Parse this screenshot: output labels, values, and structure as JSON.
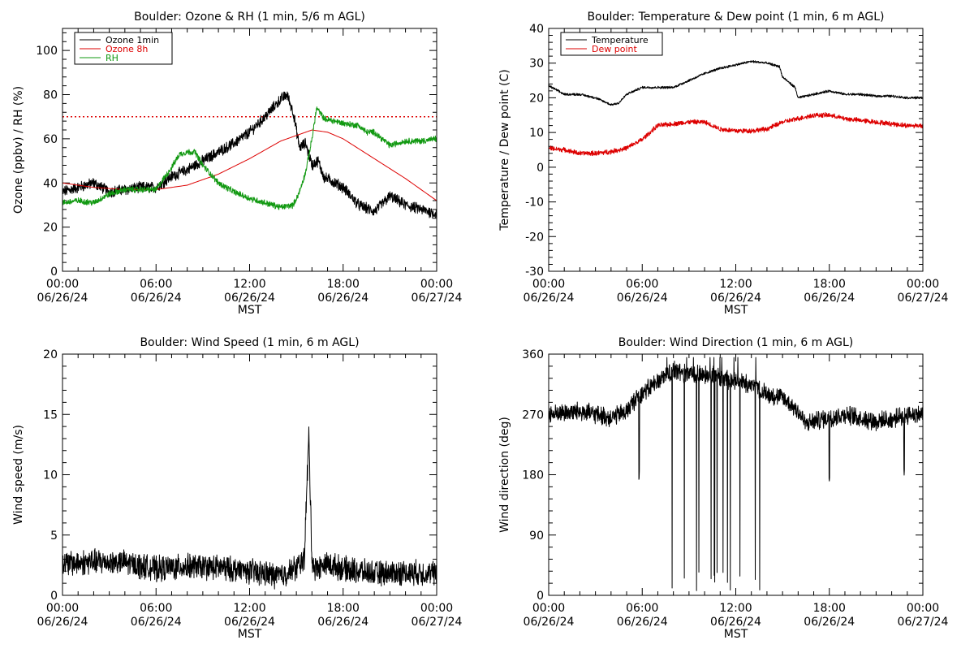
{
  "colors": {
    "black": "#000000",
    "red": "#dd0000",
    "green": "#119911"
  },
  "x_ticks": [
    {
      "time": "00:00",
      "date": "06/26/24"
    },
    {
      "time": "06:00",
      "date": "06/26/24"
    },
    {
      "time": "12:00",
      "date": "06/26/24"
    },
    {
      "time": "18:00",
      "date": "06/26/24"
    },
    {
      "time": "00:00",
      "date": "06/27/24"
    }
  ],
  "chart_data": [
    {
      "type": "line",
      "title": "Boulder: Ozone & RH (1 min, 5/6 m AGL)",
      "xlabel": "MST",
      "ylabel": "Ozone (ppbv) / RH (%)",
      "xlim_hours": [
        0,
        24
      ],
      "ylim": [
        0,
        110
      ],
      "yticks": [
        0,
        20,
        40,
        60,
        80,
        100
      ],
      "reference_line": {
        "y": 70,
        "style": "dotted",
        "color": "#dd0000"
      },
      "legend_position": "top-left",
      "series": [
        {
          "name": "Ozone 1min",
          "color": "#000000",
          "noise": 2.2,
          "x": [
            0,
            1,
            2,
            3,
            4,
            5,
            6,
            7,
            8,
            9,
            10,
            11,
            12,
            13,
            14,
            14.4,
            14.8,
            15.2,
            15.6,
            16,
            16.4,
            16.8,
            17,
            18,
            19,
            20,
            21,
            22,
            23,
            24
          ],
          "y": [
            36,
            38,
            40,
            36,
            37,
            38,
            38,
            43,
            46,
            50,
            54,
            58,
            63,
            70,
            78,
            80,
            72,
            56,
            58,
            48,
            50,
            42,
            42,
            38,
            30,
            27,
            34,
            30,
            28,
            26
          ]
        },
        {
          "name": "Ozone 8h",
          "color": "#dd0000",
          "noise": 0,
          "x": [
            0,
            2,
            4,
            6,
            8,
            10,
            12,
            14,
            16,
            17,
            18,
            20,
            22,
            24
          ],
          "y": [
            40,
            38,
            37,
            37,
            39,
            44,
            51,
            59,
            64,
            63,
            60,
            51,
            42,
            32
          ]
        },
        {
          "name": "RH",
          "color": "#119911",
          "noise": 1.2,
          "x": [
            0,
            1,
            2,
            3,
            4,
            5,
            6,
            7,
            7.5,
            8,
            8.5,
            9,
            10,
            11,
            12,
            13,
            14,
            14.8,
            15.2,
            15.6,
            16,
            16.3,
            16.8,
            17.5,
            18,
            19,
            19.5,
            20,
            21,
            22,
            23,
            24
          ],
          "y": [
            31,
            32,
            31,
            35,
            37,
            37,
            37,
            47,
            53,
            54,
            54,
            48,
            40,
            36,
            33,
            31,
            29,
            30,
            36,
            45,
            60,
            74,
            69,
            68,
            67,
            66,
            63,
            63,
            57,
            59,
            59,
            60
          ]
        }
      ]
    },
    {
      "type": "line",
      "title": "Boulder: Temperature & Dew point (1 min, 6 m AGL)",
      "xlabel": "MST",
      "ylabel": "Temperature / Dew point (C)",
      "xlim_hours": [
        0,
        24
      ],
      "ylim": [
        -30,
        40
      ],
      "yticks": [
        -30,
        -20,
        -10,
        0,
        10,
        20,
        30,
        40
      ],
      "legend_position": "top-left",
      "series": [
        {
          "name": "Temperature",
          "color": "#000000",
          "noise": 0.3,
          "x": [
            0,
            1,
            2,
            3,
            4,
            4.5,
            5,
            6,
            7,
            8,
            9,
            10,
            11,
            12,
            13,
            14,
            14.8,
            15,
            15.8,
            16,
            17,
            18,
            19,
            20,
            21,
            22,
            23,
            24
          ],
          "y": [
            23.5,
            21,
            21,
            20,
            18,
            18.5,
            21,
            23,
            23,
            23,
            25,
            27,
            28.5,
            29.5,
            30.5,
            30,
            29,
            26,
            23,
            20,
            21,
            22,
            21,
            21,
            20.5,
            20.5,
            20,
            20
          ]
        },
        {
          "name": "Dew point",
          "color": "#dd0000",
          "noise": 0.6,
          "x": [
            0,
            1,
            2,
            3,
            4,
            5,
            6,
            6.5,
            7,
            8,
            9,
            10,
            11,
            12,
            13,
            14,
            15,
            16,
            17,
            18,
            19,
            20,
            21,
            22,
            23,
            24
          ],
          "y": [
            5.5,
            5,
            4,
            4,
            4.5,
            5.5,
            8,
            10,
            12,
            12.5,
            13,
            13,
            11,
            10.5,
            10.5,
            11,
            13,
            14,
            15,
            15,
            14,
            13.5,
            13,
            12.5,
            12,
            12
          ]
        }
      ]
    },
    {
      "type": "line",
      "title": "Boulder: Wind Speed (1 min, 6 m AGL)",
      "xlabel": "MST",
      "ylabel": "Wind speed (m/s)",
      "xlim_hours": [
        0,
        24
      ],
      "ylim": [
        0,
        20
      ],
      "yticks": [
        0,
        5,
        10,
        15,
        20
      ],
      "series": [
        {
          "color": "#000000",
          "noise": 0.9,
          "x": [
            0,
            2,
            4,
            6,
            8,
            10,
            12,
            14,
            15,
            15.5,
            15.8,
            16,
            16.2,
            17,
            18,
            20,
            22,
            24
          ],
          "y": [
            2.6,
            2.8,
            2.7,
            2.2,
            2.4,
            2.3,
            2.0,
            1.6,
            2.3,
            3.0,
            13.2,
            3.0,
            2.2,
            2.6,
            2.2,
            1.8,
            1.9,
            1.8
          ]
        }
      ]
    },
    {
      "type": "line",
      "title": "Boulder: Wind Direction (1 min, 6 m AGL)",
      "xlabel": "MST",
      "ylabel": "Wind direction (deg)",
      "xlim_hours": [
        0,
        24
      ],
      "ylim": [
        0,
        360
      ],
      "yticks": [
        0,
        90,
        180,
        270,
        360
      ],
      "series": [
        {
          "color": "#000000",
          "noise": 12,
          "x": [
            0,
            2,
            4,
            5,
            5.8,
            6.5,
            7,
            8,
            9,
            10,
            11,
            12,
            13,
            14,
            15,
            16,
            16.5,
            17,
            18,
            19,
            20,
            21,
            22,
            23,
            24
          ],
          "y": [
            270,
            275,
            265,
            275,
            300,
            310,
            320,
            335,
            330,
            330,
            325,
            320,
            315,
            300,
            295,
            275,
            255,
            260,
            265,
            270,
            265,
            260,
            262,
            270,
            270
          ]
        }
      ]
    }
  ]
}
